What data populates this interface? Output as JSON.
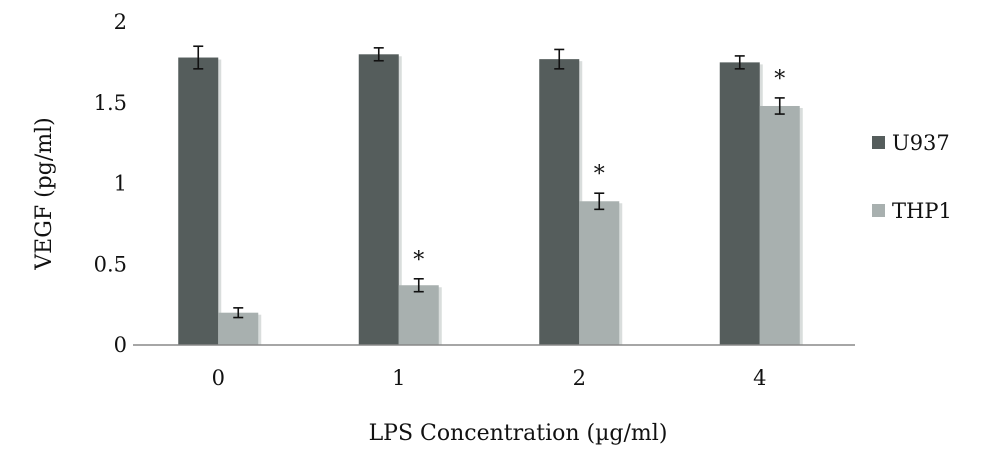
{
  "chart_data": {
    "type": "bar",
    "title": "",
    "xlabel": "LPS Concentration (µg/ml)",
    "ylabel": "VEGF (pg/ml)",
    "ylim": [
      0,
      2
    ],
    "yticks": [
      "0",
      "0.5",
      "1",
      "1.5",
      "2"
    ],
    "categories": [
      "0",
      "1",
      "2",
      "4"
    ],
    "grid": false,
    "legend_position": "right",
    "series": [
      {
        "name": "U937",
        "color": "#555d5c",
        "values": [
          1.78,
          1.8,
          1.77,
          1.75
        ],
        "errors": [
          0.07,
          0.04,
          0.06,
          0.04
        ],
        "annotations": [
          "",
          "",
          "",
          ""
        ]
      },
      {
        "name": "THP1",
        "color": "#a8b0af",
        "values": [
          0.2,
          0.37,
          0.89,
          1.48
        ],
        "errors": [
          0.03,
          0.04,
          0.05,
          0.05
        ],
        "annotations": [
          "",
          "*",
          "*",
          "*"
        ]
      }
    ]
  }
}
